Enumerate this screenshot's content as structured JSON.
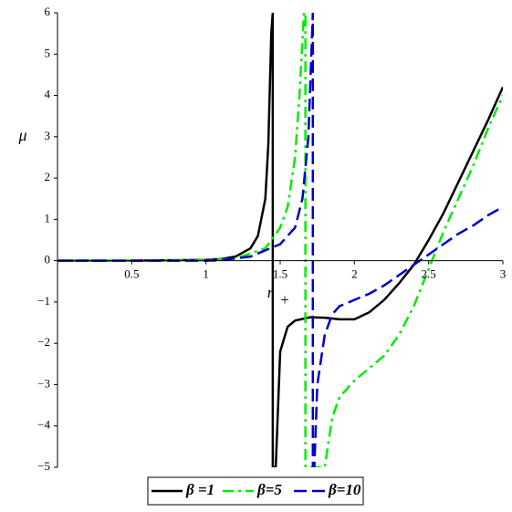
{
  "chart_data": {
    "type": "line",
    "xlabel": "r",
    "xlabel_subscript": "+",
    "ylabel": "μ",
    "xlim": [
      0,
      3
    ],
    "ylim": [
      -5,
      6
    ],
    "xticks": [
      0.5,
      1,
      1.5,
      2,
      2.5,
      3
    ],
    "yticks": [
      {
        "value": -5,
        "label": "−5"
      },
      {
        "value": -4,
        "label": "−4"
      },
      {
        "value": -3,
        "label": "−3"
      },
      {
        "value": -2,
        "label": "−2"
      },
      {
        "value": -1,
        "label": "−1"
      },
      0,
      1,
      2,
      3,
      4,
      5,
      6
    ],
    "legend": "bottom",
    "series": [
      {
        "name": "β =1",
        "color": "#000000",
        "line_style": "solid",
        "x": [
          0,
          0.5,
          1,
          1.1,
          1.2,
          1.3,
          1.35,
          1.4,
          1.42,
          1.44,
          1.45,
          1.45,
          1.47,
          1.5,
          1.55,
          1.6,
          1.7,
          1.8,
          1.9,
          2.0,
          2.1,
          2.2,
          2.3,
          2.4,
          2.5,
          2.6,
          2.7,
          2.8,
          2.9,
          3.0
        ],
        "values": [
          0,
          0,
          0.02,
          0.04,
          0.1,
          0.3,
          0.6,
          1.5,
          2.8,
          5.5,
          6,
          -5,
          -5,
          -2.2,
          -1.6,
          -1.45,
          -1.37,
          -1.38,
          -1.42,
          -1.42,
          -1.25,
          -0.95,
          -0.55,
          -0.1,
          0.5,
          1.15,
          1.9,
          2.65,
          3.4,
          4.2
        ]
      },
      {
        "name": "β=5",
        "color": "#00ee00",
        "line_style": "dashdot",
        "x": [
          0,
          0.5,
          1,
          1.2,
          1.4,
          1.5,
          1.55,
          1.6,
          1.63,
          1.66,
          1.67,
          1.67,
          1.8,
          1.85,
          1.9,
          2.0,
          2.1,
          2.2,
          2.3,
          2.4,
          2.5,
          2.6,
          2.7,
          2.8,
          2.9,
          3.0
        ],
        "values": [
          0,
          0,
          0.01,
          0.05,
          0.3,
          0.8,
          1.3,
          2.5,
          4,
          6,
          6,
          -5,
          -5,
          -3.8,
          -3.3,
          -2.9,
          -2.6,
          -2.3,
          -1.8,
          -1.1,
          -0.2,
          0.7,
          1.5,
          2.3,
          3.2,
          4.0
        ]
      },
      {
        "name": "β=10",
        "color": "#0000cc",
        "line_style": "dash",
        "x": [
          0,
          0.5,
          1,
          1.1,
          1.3,
          1.5,
          1.6,
          1.65,
          1.69,
          1.71,
          1.72,
          1.72,
          1.73,
          1.75,
          1.8,
          1.85,
          1.9,
          2.0,
          2.1,
          2.2,
          2.3,
          2.4,
          2.5,
          2.6,
          2.7,
          2.8,
          2.9,
          3.0
        ],
        "values": [
          0,
          0,
          0,
          0.01,
          0.1,
          0.4,
          0.8,
          1.5,
          3,
          5,
          6,
          -5,
          -5,
          -3,
          -1.8,
          -1.3,
          -1.1,
          -0.95,
          -0.8,
          -0.6,
          -0.35,
          -0.1,
          0.15,
          0.4,
          0.65,
          0.85,
          1.1,
          1.3
        ]
      }
    ]
  }
}
